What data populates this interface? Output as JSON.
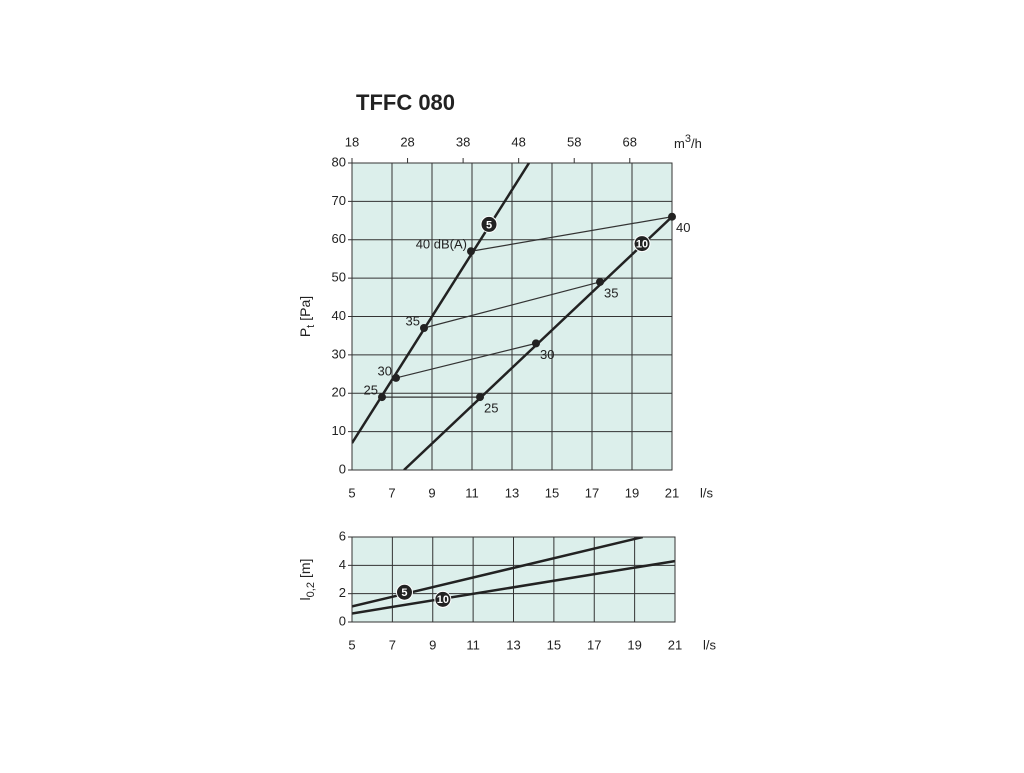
{
  "title": "TFFC 080",
  "chart_data": [
    {
      "type": "line",
      "ylabel": {
        "main": "P",
        "sub": "t",
        "unit": "[Pa]"
      },
      "xlabel": "l/s",
      "xlim": [
        5,
        21
      ],
      "xticks": [
        5,
        7,
        9,
        11,
        13,
        15,
        17,
        19,
        21
      ],
      "ylim": [
        0,
        80
      ],
      "yticks": [
        0,
        10,
        20,
        30,
        40,
        50,
        60,
        70,
        80
      ],
      "x2label": {
        "main": "m",
        "sup": "3",
        "tail": "/h"
      },
      "x2lim": [
        18,
        75.6
      ],
      "x2ticks": [
        18,
        28,
        38,
        48,
        58,
        68
      ],
      "grid": true,
      "background": "#dcefeb",
      "series": [
        {
          "name": "5",
          "color": "#222222",
          "x": [
            5,
            13.85
          ],
          "values": [
            7,
            80
          ],
          "marker": [
            11.85,
            64
          ]
        },
        {
          "name": "10",
          "color": "#222222",
          "x": [
            7.6,
            21
          ],
          "values": [
            0,
            66
          ],
          "marker": [
            19.5,
            59
          ]
        }
      ],
      "levels": [
        {
          "x": [
            10.95,
            21
          ],
          "values": [
            57,
            66
          ],
          "labels": [
            "40 dB(A)",
            "40"
          ]
        },
        {
          "x": [
            8.6,
            17.4
          ],
          "values": [
            37,
            49
          ],
          "labels": [
            "35",
            "35"
          ]
        },
        {
          "x": [
            7.2,
            14.2
          ],
          "values": [
            24,
            33
          ],
          "labels": [
            "30",
            "30"
          ]
        },
        {
          "x": [
            6.5,
            11.4
          ],
          "values": [
            19,
            19
          ],
          "labels": [
            "25",
            "25"
          ]
        }
      ]
    },
    {
      "type": "line",
      "ylabel": {
        "main": "l",
        "sub": "0,2",
        "unit": "[m]"
      },
      "xlabel": "l/s",
      "xlim": [
        5,
        21
      ],
      "xticks": [
        5,
        7,
        9,
        11,
        13,
        15,
        17,
        19,
        21
      ],
      "ylim": [
        0,
        6
      ],
      "yticks": [
        0,
        2,
        4,
        6
      ],
      "grid": true,
      "background": "#dcefeb",
      "series": [
        {
          "name": "5",
          "color": "#222222",
          "x": [
            5,
            19.4
          ],
          "values": [
            1.1,
            6
          ],
          "marker": [
            7.6,
            2.1
          ]
        },
        {
          "name": "10",
          "color": "#222222",
          "x": [
            5,
            21
          ],
          "values": [
            0.6,
            4.3
          ],
          "marker": [
            9.5,
            1.6
          ]
        }
      ]
    }
  ]
}
